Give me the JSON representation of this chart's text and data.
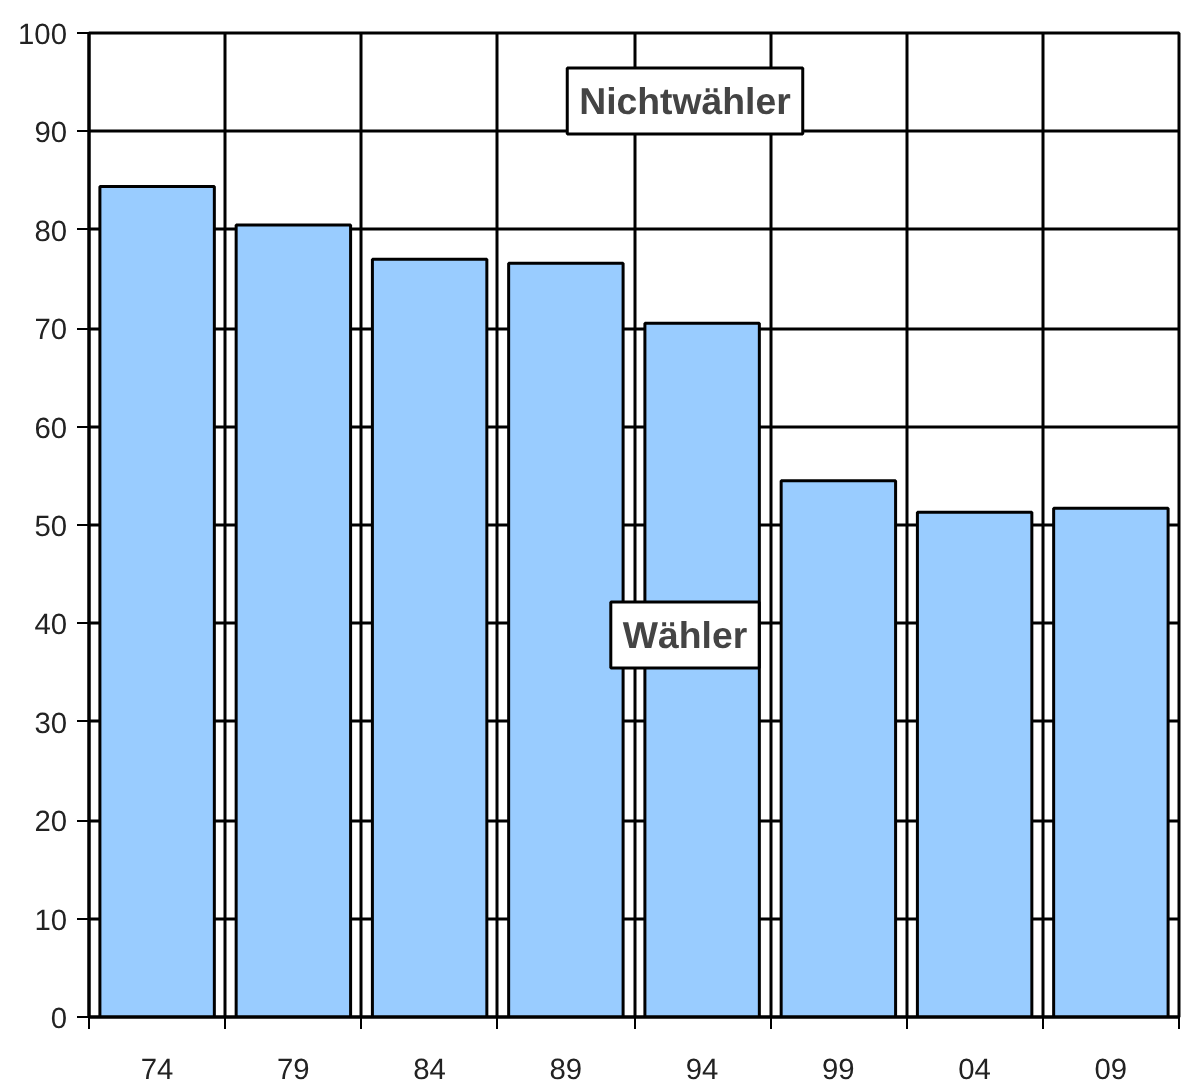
{
  "chart_data": {
    "type": "bar",
    "categories": [
      "74",
      "79",
      "84",
      "89",
      "94",
      "99",
      "04",
      "09"
    ],
    "values": [
      84.4,
      80.5,
      77.0,
      76.6,
      70.5,
      54.5,
      51.3,
      51.7
    ],
    "color": "#99ccff",
    "ylim": [
      0,
      100
    ],
    "yticks": [
      0,
      10,
      20,
      30,
      40,
      50,
      60,
      70,
      80,
      90,
      100
    ],
    "grid": true,
    "annotations": [
      "Nichtwähler",
      "Wähler"
    ]
  }
}
